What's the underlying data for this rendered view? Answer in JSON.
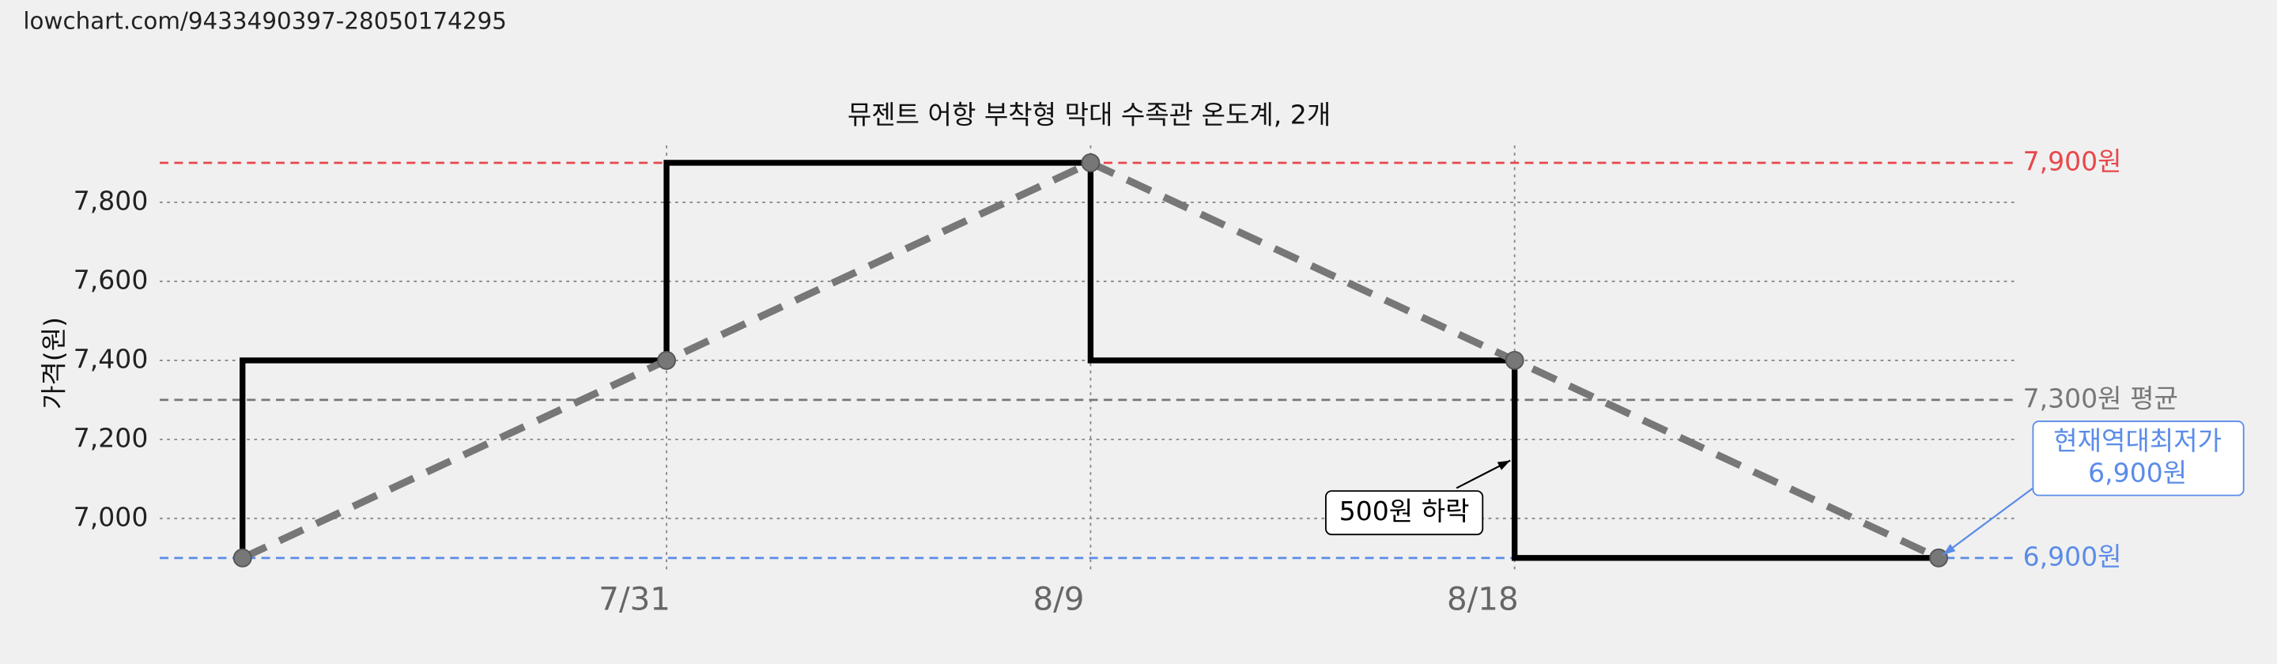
{
  "url": "lowchart.com/9433490397-28050174295",
  "chart_data": {
    "type": "line",
    "title": "뮤젠트 어항 부착형 막대 수족관 온도계, 2개",
    "ylabel": "가격(원)",
    "categories": [
      null,
      "7/31",
      "8/9",
      "8/18",
      null
    ],
    "series": [
      {
        "color": "#000000",
        "trend_color": "#777777",
        "step": "pre",
        "values": [
          6900,
          7400,
          7900,
          7400,
          6900
        ]
      }
    ],
    "ylim": [
      6860,
      7944
    ],
    "yticks": [
      {
        "value": 7000,
        "label": "7,000"
      },
      {
        "value": 7200,
        "label": "7,200"
      },
      {
        "value": 7400,
        "label": "7,400"
      },
      {
        "value": 7600,
        "label": "7,600"
      },
      {
        "value": 7800,
        "label": "7,800"
      }
    ],
    "grid": true,
    "reference_lines": [
      {
        "value": 7900,
        "label": "7,900원",
        "color": "#e8474c"
      },
      {
        "value": 7300,
        "label": "7,300원 평균",
        "color": "#777777"
      },
      {
        "value": 6900,
        "label": "6,900원",
        "color": "#5b8ce8"
      }
    ],
    "annotations": [
      {
        "lines": [
          "500원 하락"
        ]
      },
      {
        "lines": [
          "현재역대최저가",
          "6,900원"
        ],
        "color": "#5b8ce8"
      }
    ]
  }
}
